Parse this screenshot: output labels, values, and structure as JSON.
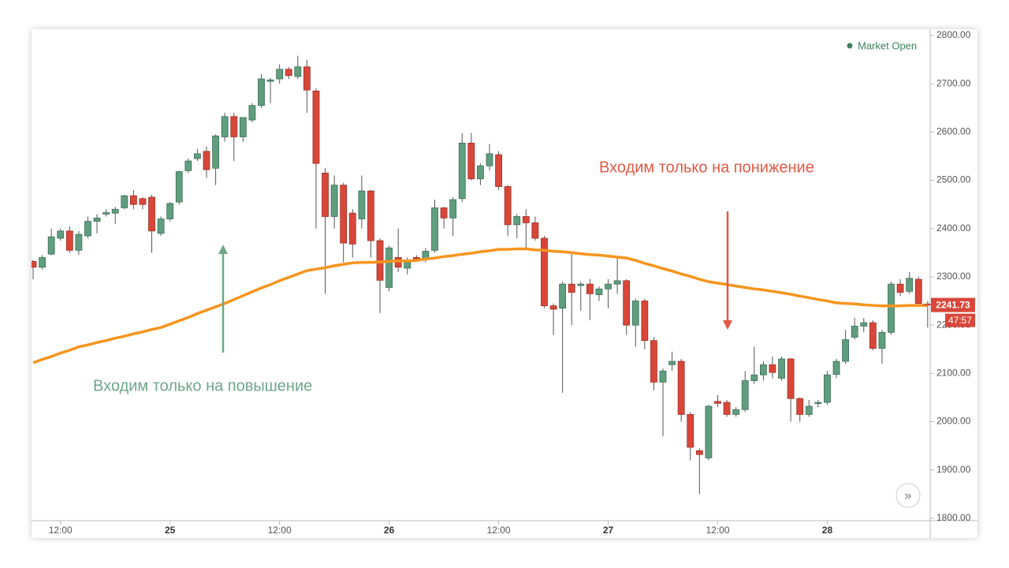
{
  "chart_data": {
    "type": "candlestick",
    "status": "Market Open",
    "categories": [
      null,
      null,
      null,
      "12:00",
      null,
      null,
      null,
      null,
      null,
      null,
      null,
      null,
      null,
      null,
      null,
      "25",
      null,
      null,
      null,
      null,
      null,
      null,
      null,
      null,
      null,
      null,
      null,
      "12:00",
      null,
      null,
      null,
      null,
      null,
      null,
      null,
      null,
      null,
      null,
      null,
      "26",
      null,
      null,
      null,
      null,
      null,
      null,
      null,
      null,
      null,
      null,
      null,
      "12:00",
      null,
      null,
      null,
      null,
      null,
      null,
      null,
      null,
      null,
      null,
      null,
      "27",
      null,
      null,
      null,
      null,
      null,
      null,
      null,
      null,
      null,
      null,
      null,
      "12:00",
      null,
      null,
      null,
      null,
      null,
      null,
      null,
      null,
      null,
      null,
      null,
      "28",
      null,
      null,
      null,
      null,
      null,
      null,
      null,
      null,
      null,
      null,
      null
    ],
    "open": [
      2332,
      2320,
      2347,
      2380,
      2395,
      2355,
      2385,
      2415,
      2430,
      2432,
      2443,
      2468,
      2462,
      2465,
      2390,
      2420,
      2455,
      2520,
      2545,
      2560,
      2525,
      2590,
      2632,
      2590,
      2625,
      2655,
      2705,
      2710,
      2730,
      2715,
      2735,
      2685,
      2515,
      2425,
      2490,
      2432,
      2420,
      2478,
      2375,
      2278,
      2340,
      2318,
      2340,
      2336,
      2355,
      2443,
      2422,
      2462,
      2577,
      2503,
      2530,
      2553,
      2487,
      2408,
      2425,
      2412,
      2380,
      2240,
      2235,
      2285,
      2282,
      2285,
      2263,
      2275,
      2285,
      2292,
      2200,
      2250,
      2168,
      2082,
      2118,
      2125,
      2015,
      1940,
      1925,
      2042,
      2040,
      2015,
      2025,
      2085,
      2097,
      2118,
      2090,
      2130,
      2048,
      2015,
      2038,
      2040,
      2098,
      2125,
      2175,
      2198,
      2205,
      2152,
      2185,
      2285,
      2270,
      2295,
      2244
    ],
    "high": [
      2335,
      2345,
      2400,
      2400,
      2405,
      2395,
      2425,
      2430,
      2440,
      2445,
      2470,
      2480,
      2465,
      2470,
      2425,
      2455,
      2520,
      2545,
      2565,
      2570,
      2595,
      2640,
      2640,
      2630,
      2660,
      2720,
      2712,
      2740,
      2735,
      2758,
      2750,
      2690,
      2525,
      2510,
      2495,
      2440,
      2510,
      2480,
      2380,
      2365,
      2400,
      2340,
      2345,
      2360,
      2460,
      2445,
      2465,
      2598,
      2598,
      2535,
      2575,
      2560,
      2490,
      2430,
      2440,
      2425,
      2385,
      2245,
      2290,
      2350,
      2290,
      2295,
      2280,
      2295,
      2340,
      2295,
      2255,
      2255,
      2175,
      2110,
      2145,
      2130,
      2020,
      1945,
      2035,
      2055,
      2045,
      2030,
      2105,
      2155,
      2125,
      2135,
      2135,
      2132,
      2050,
      2045,
      2045,
      2105,
      2130,
      2190,
      2215,
      2215,
      2210,
      2190,
      2290,
      2295,
      2310,
      2300,
      2250
    ],
    "low": [
      2295,
      2315,
      2345,
      2375,
      2350,
      2345,
      2380,
      2390,
      2425,
      2410,
      2440,
      2440,
      2440,
      2350,
      2385,
      2415,
      2450,
      2515,
      2540,
      2505,
      2490,
      2580,
      2540,
      2580,
      2620,
      2650,
      2660,
      2700,
      2710,
      2710,
      2640,
      2400,
      2265,
      2400,
      2330,
      2340,
      2400,
      2340,
      2225,
      2270,
      2310,
      2305,
      2335,
      2330,
      2350,
      2400,
      2385,
      2455,
      2500,
      2490,
      2520,
      2480,
      2385,
      2380,
      2360,
      2375,
      2235,
      2180,
      2060,
      2200,
      2230,
      2210,
      2250,
      2235,
      2265,
      2180,
      2155,
      2150,
      2065,
      1970,
      2105,
      2000,
      1920,
      1850,
      1920,
      2030,
      2010,
      2010,
      2020,
      2078,
      2085,
      2090,
      2085,
      2000,
      2000,
      2010,
      2030,
      2035,
      2090,
      2120,
      2170,
      2185,
      2148,
      2120,
      2180,
      2260,
      2265,
      2240,
      2195
    ],
    "close": [
      2320,
      2340,
      2383,
      2395,
      2355,
      2388,
      2415,
      2422,
      2433,
      2440,
      2468,
      2450,
      2450,
      2395,
      2420,
      2452,
      2518,
      2540,
      2555,
      2522,
      2592,
      2632,
      2590,
      2630,
      2655,
      2710,
      2708,
      2730,
      2717,
      2735,
      2687,
      2535,
      2425,
      2490,
      2370,
      2368,
      2478,
      2375,
      2293,
      2360,
      2320,
      2335,
      2338,
      2353,
      2443,
      2422,
      2460,
      2577,
      2503,
      2530,
      2555,
      2487,
      2408,
      2425,
      2412,
      2380,
      2240,
      2233,
      2285,
      2268,
      2285,
      2265,
      2275,
      2285,
      2292,
      2200,
      2250,
      2168,
      2082,
      2105,
      2125,
      2015,
      1947,
      1932,
      2032,
      2038,
      2015,
      2025,
      2085,
      2097,
      2118,
      2102,
      2130,
      2048,
      2015,
      2032,
      2040,
      2097,
      2125,
      2170,
      2198,
      2205,
      2152,
      2185,
      2285,
      2268,
      2297,
      2245,
      2242
    ],
    "up_color": "#5f9e7f",
    "down_color": "#d9473a",
    "moving_average": {
      "color": "#f7941d",
      "values": [
        2122,
        2129,
        2135,
        2142,
        2148,
        2155,
        2159,
        2164,
        2168,
        2173,
        2177,
        2182,
        2186,
        2191,
        2195,
        2202,
        2209,
        2216,
        2224,
        2231,
        2238,
        2245,
        2253,
        2261,
        2269,
        2277,
        2284,
        2292,
        2299,
        2306,
        2313,
        2316,
        2319,
        2323,
        2326,
        2329,
        2330,
        2330,
        2331,
        2332,
        2333,
        2333,
        2334,
        2337,
        2339,
        2342,
        2344,
        2347,
        2349,
        2352,
        2354,
        2357,
        2357,
        2358,
        2358,
        2356,
        2355,
        2353,
        2352,
        2350,
        2348,
        2346,
        2345,
        2343,
        2341,
        2339,
        2334,
        2328,
        2323,
        2317,
        2312,
        2306,
        2301,
        2295,
        2290,
        2287,
        2284,
        2281,
        2278,
        2275,
        2273,
        2270,
        2267,
        2264,
        2260,
        2257,
        2253,
        2250,
        2246,
        2245,
        2244,
        2242,
        2241,
        2240,
        2240,
        2240,
        2241,
        2241,
        2241
      ]
    },
    "ylim": [
      1795,
      2813
    ],
    "yticks": [
      {
        "value": 1800,
        "label": "1800.00"
      },
      {
        "value": 1900,
        "label": "1900.00"
      },
      {
        "value": 2000,
        "label": "2000.00"
      },
      {
        "value": 2100,
        "label": "2100.00"
      },
      {
        "value": 2200,
        "label": "2200.00"
      },
      {
        "value": 2300,
        "label": "2300.00"
      },
      {
        "value": 2400,
        "label": "2400.00"
      },
      {
        "value": 2500,
        "label": "2500.00"
      },
      {
        "value": 2600,
        "label": "2600.00"
      },
      {
        "value": 2700,
        "label": "2700.00"
      },
      {
        "value": 2800,
        "label": "2800.00"
      }
    ],
    "last_price": 2241.73,
    "countdown": "47:57",
    "annotations": [
      {
        "text": "Входим только на повышение",
        "color": "#6fa68a"
      },
      {
        "text": "Входим только на понижение",
        "color": "#e05a46"
      }
    ]
  }
}
